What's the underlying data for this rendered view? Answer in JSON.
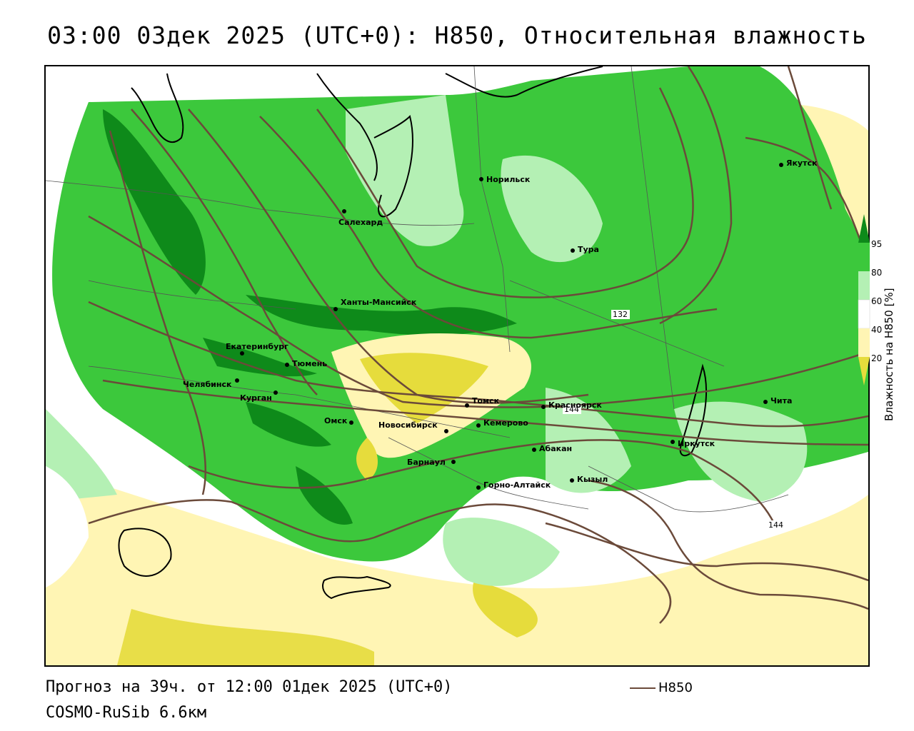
{
  "title": "03:00 03дек 2025 (UTC+0): H850, Относительная влажность",
  "footer": {
    "forecast": "Прогноз на 39ч. от 12:00 01дек 2025 (UTC+0)",
    "model": "COSMO-RuSib 6.6км"
  },
  "legend": {
    "contour_label": "H850",
    "contour_color": "#6b4a3a"
  },
  "colorbar": {
    "title": "Влажность на H850 [%]",
    "ticks": [
      "95",
      "80",
      "60",
      "40",
      "20"
    ],
    "colors": {
      "c95": "#0e8a1a",
      "c80": "#3cc83c",
      "c60": "#b4f0b4",
      "c40": "#ffffff",
      "c20a": "#fff5b4",
      "c20b": "#e6dc3c"
    }
  },
  "map": {
    "cities": [
      {
        "name": "Норильск"
      },
      {
        "name": "Якутск"
      },
      {
        "name": "Салехард"
      },
      {
        "name": "Тура"
      },
      {
        "name": "Ханты-Мансийск"
      },
      {
        "name": "Екатеринбург"
      },
      {
        "name": "Тюмень"
      },
      {
        "name": "Челябинск"
      },
      {
        "name": "Курган"
      },
      {
        "name": "Омск"
      },
      {
        "name": "Новосибирск"
      },
      {
        "name": "Томск"
      },
      {
        "name": "Кемерово"
      },
      {
        "name": "Красноярск"
      },
      {
        "name": "Чита"
      },
      {
        "name": "Иркутск"
      },
      {
        "name": "Абакан"
      },
      {
        "name": "Барнаул"
      },
      {
        "name": "Горно-Алтайск"
      },
      {
        "name": "Кызыл"
      }
    ],
    "contour_labels": [
      "132",
      "144",
      "144"
    ]
  }
}
